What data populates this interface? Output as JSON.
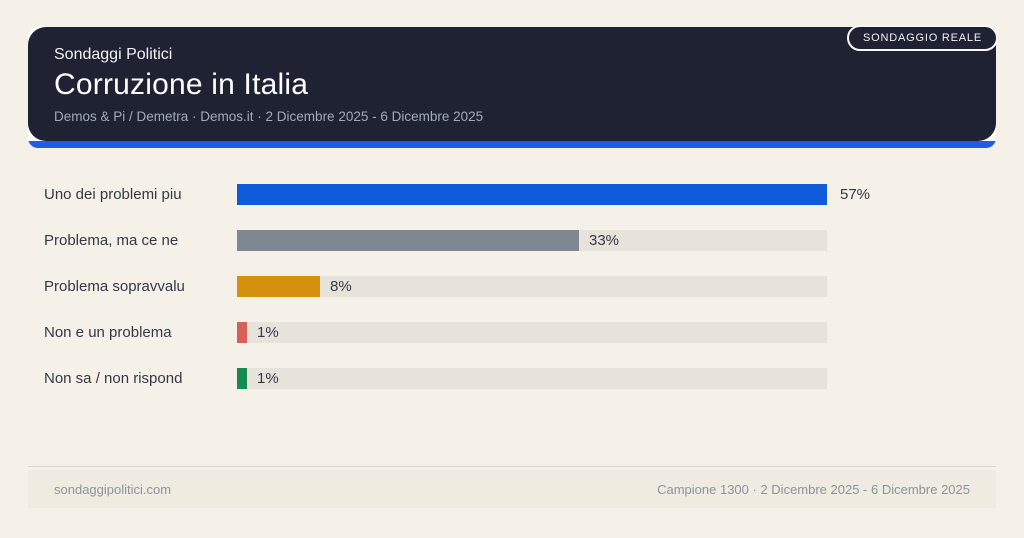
{
  "page": {
    "background": "#f5f0e8"
  },
  "header": {
    "kicker": "Sondaggi Politici",
    "title": "Corruzione in Italia",
    "subtitle": "Demos & Pi / Demetra · Demos.it · 2 Dicembre 2025 - 6 Dicembre 2025",
    "badge": "SONDAGGIO REALE",
    "card_color": "#1e2233",
    "accent_color": "#1d5fe0"
  },
  "chart_data": {
    "type": "bar",
    "orientation": "horizontal",
    "title": "Corruzione in Italia",
    "categories": [
      "Uno dei problemi piu",
      "Problema, ma ce ne",
      "Problema sopravvalu",
      "Non e un problema",
      "Non sa / non rispond"
    ],
    "values": [
      57,
      33,
      8,
      1,
      1
    ],
    "value_labels": [
      "57%",
      "33%",
      "8%",
      "1%",
      "1%"
    ],
    "bar_colors": [
      "#0d5bd8",
      "#7f8792",
      "#d4910d",
      "#d96057",
      "#158a52"
    ],
    "track_color": "#e7e3db",
    "max_scale": 57,
    "xlim": [
      0,
      57
    ],
    "grid": false,
    "legend": false
  },
  "footer": {
    "left": "sondaggipolitici.com",
    "right": "Campione 1300 · 2 Dicembre 2025 - 6 Dicembre 2025"
  }
}
